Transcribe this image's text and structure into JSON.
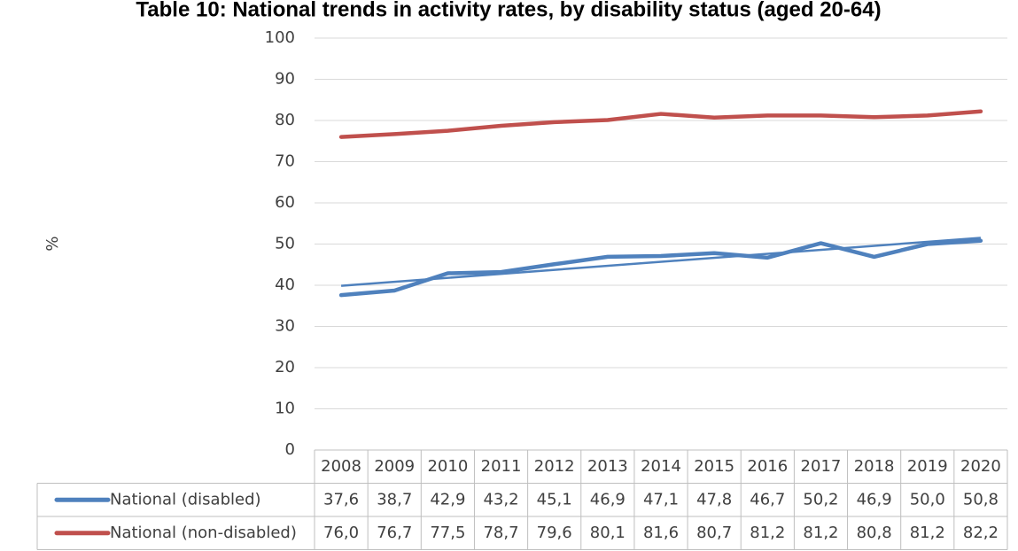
{
  "chart_data": {
    "type": "line",
    "title": "Table 10: National trends in activity rates, by disability status (aged 20-64)",
    "y_label": "%",
    "categories": [
      "2008",
      "2009",
      "2010",
      "2011",
      "2012",
      "2013",
      "2014",
      "2015",
      "2016",
      "2017",
      "2018",
      "2019",
      "2020"
    ],
    "series": [
      {
        "name": "National (disabled)",
        "color": "#4f81bd",
        "trendline": true,
        "values": [
          37.6,
          38.7,
          42.9,
          43.2,
          45.1,
          46.9,
          47.1,
          47.8,
          46.7,
          50.2,
          46.9,
          50.0,
          50.8
        ],
        "value_labels": [
          "37,6",
          "38,7",
          "42,9",
          "43,2",
          "45,1",
          "46,9",
          "47,1",
          "47,8",
          "46,7",
          "50,2",
          "46,9",
          "50,0",
          "50,8"
        ]
      },
      {
        "name": "National (non-disabled)",
        "color": "#c0504d",
        "values": [
          76.0,
          76.7,
          77.5,
          78.7,
          79.6,
          80.1,
          81.6,
          80.7,
          81.2,
          81.2,
          80.8,
          81.2,
          82.2
        ],
        "value_labels": [
          "76,0",
          "76,7",
          "77,5",
          "78,7",
          "79,6",
          "80,1",
          "81,6",
          "80,7",
          "81,2",
          "81,2",
          "80,8",
          "81,2",
          "82,2"
        ]
      }
    ],
    "ylim": [
      0,
      100
    ],
    "yticks": [
      0,
      10,
      20,
      30,
      40,
      50,
      60,
      70,
      80,
      90,
      100
    ],
    "grid": true
  }
}
